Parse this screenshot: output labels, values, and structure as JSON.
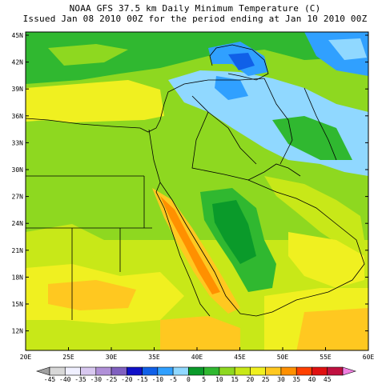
{
  "title_line1": "NOAA GFS 37.5 km Daily Minimum Temperature (C)",
  "title_line2": "Issued Jan 08 2010 00Z for the period ending at Jan 10 2010 00Z",
  "lat_labels": [
    "45N",
    "42N",
    "39N",
    "36N",
    "33N",
    "30N",
    "27N",
    "24N",
    "21N",
    "18N",
    "15N",
    "12N"
  ],
  "lon_labels": [
    "20E",
    "25E",
    "30E",
    "35E",
    "40E",
    "45E",
    "50E",
    "55E",
    "60E"
  ],
  "colorbar": {
    "labels": [
      "-45",
      "-40",
      "-35",
      "-30",
      "-25",
      "-20",
      "-15",
      "-10",
      "-5",
      "0",
      "5",
      "10",
      "15",
      "20",
      "25",
      "30",
      "35",
      "40",
      "45"
    ],
    "colors": [
      "#a0a0a0",
      "#d8d8d8",
      "#f0f0ff",
      "#d8c8f0",
      "#b090d8",
      "#8060c0",
      "#1010c8",
      "#1060e8",
      "#30a0ff",
      "#90d8ff",
      "#0a9a2a",
      "#30b830",
      "#8ed820",
      "#c8e818",
      "#f0f020",
      "#ffc820",
      "#ff9000",
      "#ff4000",
      "#e01010",
      "#c01040",
      "#f080e0"
    ]
  },
  "colors": {
    "green": "#30b830",
    "dark_green": "#0a9a2a",
    "lime": "#8ed820",
    "yellow_green": "#c8e818",
    "yellow": "#f0f020",
    "orange": "#ffc820",
    "dark_orange": "#ff9000",
    "light_blue": "#90d8ff",
    "blue": "#30a0ff",
    "deep_blue": "#1060e8",
    "pale_lilac": "#f0f0ff"
  }
}
